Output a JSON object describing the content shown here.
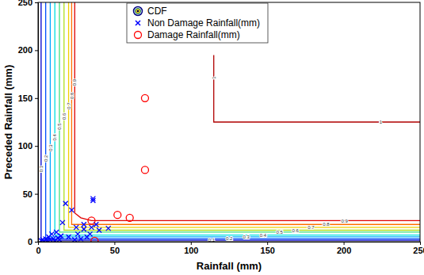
{
  "chart_data": {
    "type": "scatter",
    "xlabel": "Rainfall (mm)",
    "ylabel": "Preceded Rainfall (mm)",
    "xlim": [
      0,
      250
    ],
    "ylim": [
      0,
      250
    ],
    "xticks": [
      0,
      50,
      100,
      150,
      200,
      250
    ],
    "yticks": [
      0,
      50,
      100,
      150,
      200,
      250
    ],
    "grid": false,
    "legend": "top",
    "cdf": {
      "name": "CDF",
      "lines": [
        {
          "level": 0.1,
          "color": "#0000cc",
          "x": [
            2,
            2,
            250
          ],
          "values": [
            250,
            1.5,
            1.5
          ]
        },
        {
          "level": 0.2,
          "color": "#0050ff",
          "x": [
            5,
            5,
            250
          ],
          "values": [
            250,
            3,
            3
          ]
        },
        {
          "level": 0.3,
          "color": "#00a8ff",
          "x": [
            8,
            8,
            250
          ],
          "values": [
            250,
            5,
            5
          ]
        },
        {
          "level": 0.4,
          "color": "#00e0e0",
          "x": [
            11,
            11,
            250
          ],
          "values": [
            250,
            7,
            7
          ]
        },
        {
          "level": 0.5,
          "color": "#40e080",
          "x": [
            14,
            14,
            250
          ],
          "values": [
            250,
            10,
            10
          ]
        },
        {
          "level": 0.6,
          "color": "#b0e020",
          "x": [
            17,
            17,
            250
          ],
          "values": [
            250,
            12,
            12
          ]
        },
        {
          "level": 0.7,
          "color": "#f0d000",
          "x": [
            20,
            20,
            250
          ],
          "values": [
            250,
            15,
            15
          ]
        },
        {
          "level": 0.8,
          "color": "#ff7000",
          "x": [
            22,
            22,
            250
          ],
          "values": [
            250,
            18,
            18
          ]
        },
        {
          "level": 0.9,
          "color": "#e00000",
          "x": [
            24,
            24,
            28,
            35,
            250
          ],
          "values": [
            250,
            30,
            25,
            22,
            22
          ]
        },
        {
          "level": 1,
          "color": "#b00000",
          "x": [
            115,
            115,
            250
          ],
          "values": [
            195,
            125,
            125
          ]
        }
      ]
    },
    "series": [
      {
        "name": "Non Damage Rainfall(mm)",
        "color": "#0000ff",
        "marker": "x",
        "x": [
          2,
          3,
          4,
          5,
          6,
          7,
          8,
          9,
          10,
          11,
          12,
          13,
          14,
          15,
          16,
          18,
          20,
          22,
          24,
          25,
          26,
          28,
          30,
          30,
          32,
          34,
          35,
          36,
          36,
          38,
          40,
          46
        ],
        "values": [
          1,
          2,
          0,
          3,
          1,
          5,
          2,
          8,
          3,
          1,
          10,
          4,
          2,
          6,
          20,
          40,
          5,
          33,
          2,
          15,
          8,
          3,
          13,
          18,
          5,
          8,
          15,
          45,
          43,
          18,
          12,
          14
        ]
      },
      {
        "name": "Damage Rainfall(mm)",
        "color": "#ff0000",
        "marker": "circle",
        "x": [
          35,
          37,
          52,
          60,
          70,
          70
        ],
        "values": [
          22,
          1,
          28,
          25,
          150,
          75
        ]
      }
    ]
  }
}
